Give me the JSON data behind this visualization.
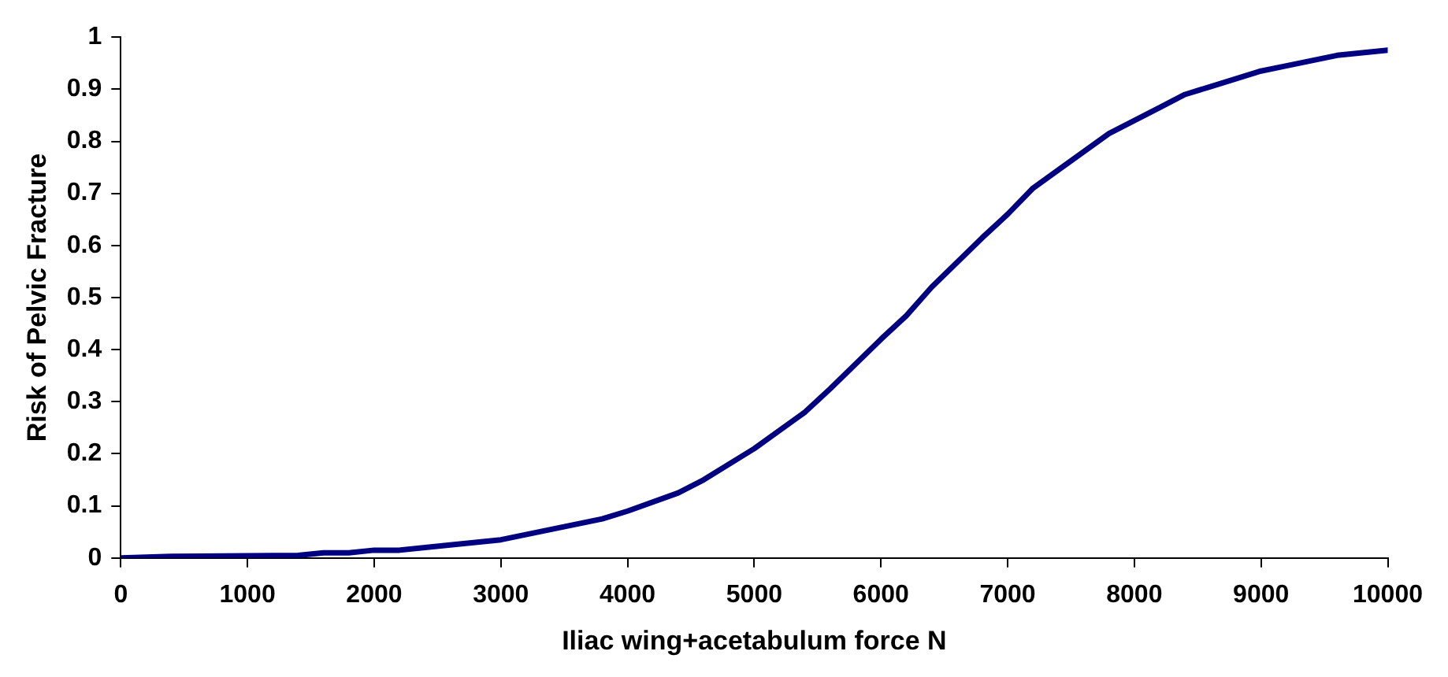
{
  "chart_data": {
    "type": "line",
    "xlabel": "Iliac wing+acetabulum force N",
    "ylabel": "Risk of Pelvic Fracture",
    "x": [
      0,
      400,
      1400,
      1600,
      1800,
      2000,
      2200,
      2600,
      3000,
      3400,
      3800,
      4000,
      4400,
      4600,
      5000,
      5400,
      5600,
      6000,
      6200,
      6400,
      6800,
      7000,
      7200,
      7400,
      7800,
      8000,
      8200,
      8400,
      8600,
      9000,
      9200,
      9600,
      10000
    ],
    "series": [
      {
        "color": "#000080",
        "values": [
          0,
          0.003,
          0.005,
          0.01,
          0.01,
          0.015,
          0.015,
          0.025,
          0.035,
          0.055,
          0.075,
          0.09,
          0.125,
          0.15,
          0.21,
          0.28,
          0.325,
          0.42,
          0.465,
          0.52,
          0.615,
          0.66,
          0.71,
          0.745,
          0.815,
          0.84,
          0.865,
          0.89,
          0.905,
          0.935,
          0.945,
          0.965,
          0.975
        ]
      }
    ],
    "xlim": [
      0,
      10000
    ],
    "xticks": [
      0,
      1000,
      2000,
      3000,
      4000,
      5000,
      6000,
      7000,
      8000,
      9000,
      10000
    ],
    "ylim": [
      0,
      1
    ],
    "yticks": [
      0,
      0.1,
      0.2,
      0.3,
      0.4,
      0.5,
      0.6,
      0.7,
      0.8,
      0.9,
      1
    ],
    "grid": false,
    "legend": false,
    "marker": "none",
    "line_style": "solid"
  }
}
